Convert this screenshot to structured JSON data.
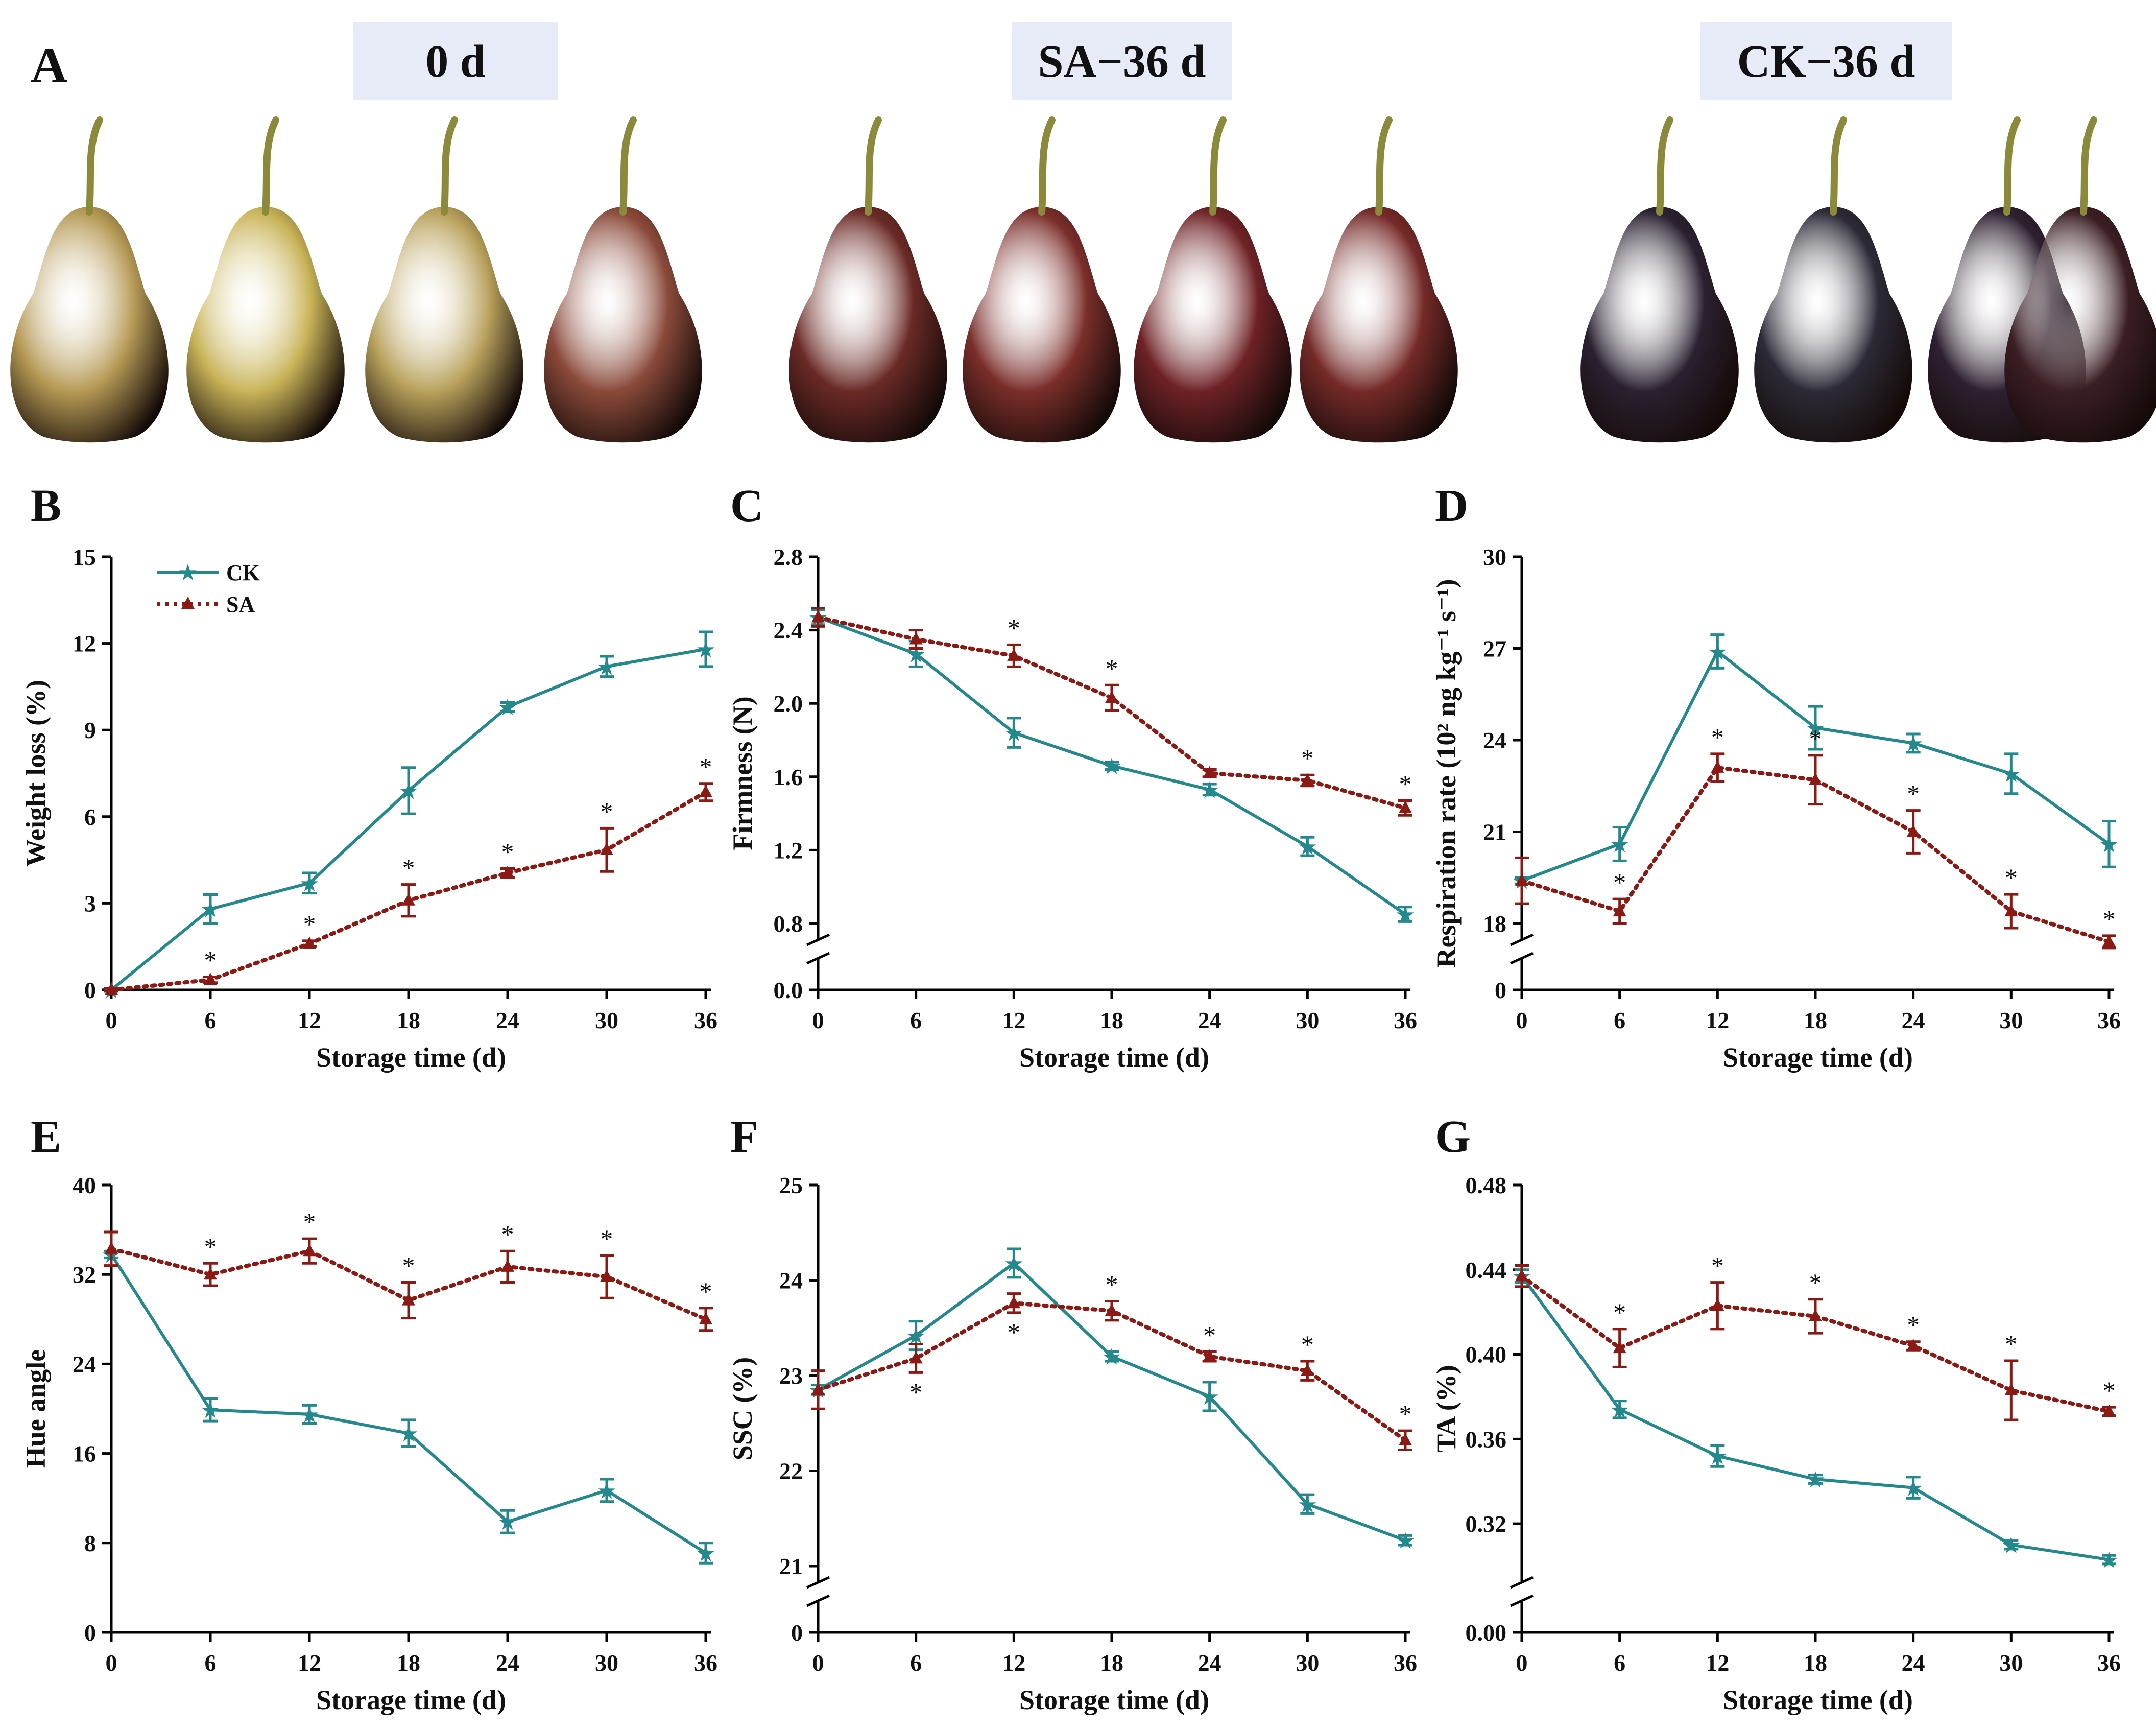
{
  "panel_a": {
    "letter": "A",
    "groups": [
      {
        "label": "0 d",
        "fruit_colors": [
          "#b69a55",
          "#c9b458",
          "#b9a25c",
          "#8a4a3a"
        ]
      },
      {
        "label": "SA−36 d",
        "fruit_colors": [
          "#6a2a26",
          "#7a2e2a",
          "#6e2226",
          "#742a28"
        ]
      },
      {
        "label": "CK−36 d",
        "fruit_colors": [
          "#2a2030",
          "#2c2a36",
          "#2e2030",
          "#3a1e24"
        ]
      }
    ],
    "stem_color": "#8a8a3a"
  },
  "colors": {
    "ck": "#24898c",
    "sa": "#8b1a14"
  },
  "chart_data": [
    {
      "type": "line",
      "panel": "B",
      "xlabel": "Storage time (d)",
      "ylabel": "Weight loss (%)",
      "ylim": [
        0,
        15
      ],
      "yticks": [
        "0",
        "3",
        "6",
        "9",
        "12",
        "15"
      ],
      "axis_break": false,
      "x": [
        0,
        6,
        12,
        18,
        24,
        30,
        36
      ],
      "legend": {
        "ck": "CK",
        "sa": "SA"
      },
      "series": [
        {
          "name": "CK",
          "values": [
            0,
            2.8,
            3.7,
            6.9,
            9.8,
            11.2,
            11.8
          ],
          "errors": [
            0.05,
            0.5,
            0.35,
            0.8,
            0.15,
            0.35,
            0.6
          ]
        },
        {
          "name": "SA",
          "values": [
            0,
            0.35,
            1.6,
            3.1,
            4.05,
            4.85,
            6.85
          ],
          "errors": [
            0.05,
            0.1,
            0.1,
            0.55,
            0.15,
            0.75,
            0.3
          ],
          "stars": [
            1,
            2,
            3,
            4,
            5,
            6
          ]
        }
      ]
    },
    {
      "type": "line",
      "panel": "C",
      "xlabel": "Storage time (d)",
      "ylabel": "Firmness (N)",
      "ylim": [
        0.8,
        2.8
      ],
      "yticks": [
        "0.8",
        "1.2",
        "1.6",
        "2.0",
        "2.4",
        "2.8"
      ],
      "axis_break": true,
      "break_label": "0.0",
      "x": [
        0,
        6,
        12,
        18,
        24,
        30,
        36
      ],
      "series": [
        {
          "name": "CK",
          "values": [
            2.47,
            2.27,
            1.84,
            1.66,
            1.53,
            1.22,
            0.85
          ],
          "errors": [
            0.04,
            0.07,
            0.08,
            0.02,
            0.03,
            0.05,
            0.04
          ]
        },
        {
          "name": "SA",
          "values": [
            2.47,
            2.35,
            2.26,
            2.03,
            1.62,
            1.58,
            1.43
          ],
          "errors": [
            0.05,
            0.05,
            0.06,
            0.07,
            0.02,
            0.03,
            0.04
          ],
          "stars": [
            2,
            3,
            5,
            6
          ]
        }
      ]
    },
    {
      "type": "line",
      "panel": "D",
      "xlabel": "Storage time (d)",
      "ylabel": "Respiration rate (10² ng kg⁻¹ s⁻¹)",
      "ylim": [
        18,
        30
      ],
      "yticks": [
        "18",
        "21",
        "24",
        "27",
        "30"
      ],
      "axis_break": true,
      "break_label": "0",
      "x": [
        0,
        6,
        12,
        18,
        24,
        30,
        36
      ],
      "series": [
        {
          "name": "CK",
          "values": [
            19.4,
            20.6,
            26.9,
            24.4,
            23.9,
            22.9,
            20.6
          ],
          "errors": [
            0.1,
            0.55,
            0.55,
            0.7,
            0.3,
            0.65,
            0.75
          ]
        },
        {
          "name": "SA",
          "values": [
            19.4,
            18.4,
            23.1,
            22.7,
            21.0,
            18.4,
            17.4
          ],
          "errors": [
            0.75,
            0.4,
            0.45,
            0.8,
            0.7,
            0.55,
            0.2
          ],
          "stars": [
            1,
            2,
            3,
            4,
            5,
            6
          ]
        }
      ]
    },
    {
      "type": "line",
      "panel": "E",
      "xlabel": "Storage time (d)",
      "ylabel": "Hue angle",
      "ylim": [
        0,
        40
      ],
      "yticks": [
        "0",
        "8",
        "16",
        "24",
        "32",
        "40"
      ],
      "axis_break": false,
      "x": [
        0,
        6,
        12,
        18,
        24,
        30,
        36
      ],
      "series": [
        {
          "name": "CK",
          "values": [
            33.8,
            19.9,
            19.5,
            17.8,
            9.9,
            12.7,
            7.1
          ],
          "errors": [
            0.3,
            1.0,
            0.8,
            1.2,
            1.0,
            1.0,
            0.9
          ]
        },
        {
          "name": "SA",
          "values": [
            34.3,
            32.0,
            34.1,
            29.7,
            32.7,
            31.8,
            28.0
          ],
          "errors": [
            1.5,
            1.0,
            1.1,
            1.6,
            1.4,
            1.9,
            1.0
          ],
          "stars": [
            1,
            2,
            3,
            4,
            5,
            6
          ]
        }
      ]
    },
    {
      "type": "line",
      "panel": "F",
      "xlabel": "Storage time (d)",
      "ylabel": "SSC (%)",
      "ylim": [
        21,
        25
      ],
      "yticks": [
        "21",
        "22",
        "23",
        "24",
        "25"
      ],
      "axis_break": true,
      "break_label": "0",
      "x": [
        0,
        6,
        12,
        18,
        24,
        30,
        36
      ],
      "series": [
        {
          "name": "CK",
          "values": [
            22.85,
            23.42,
            24.18,
            23.2,
            22.78,
            21.65,
            21.27
          ],
          "errors": [
            0.05,
            0.15,
            0.15,
            0.05,
            0.15,
            0.1,
            0.05
          ]
        },
        {
          "name": "SA",
          "values": [
            22.85,
            23.18,
            23.76,
            23.68,
            23.2,
            23.05,
            22.32
          ],
          "errors": [
            0.2,
            0.15,
            0.1,
            0.1,
            0.05,
            0.1,
            0.1
          ],
          "stars": [
            1,
            2,
            3,
            4,
            5,
            6
          ],
          "stars_below": [
            1,
            2
          ]
        }
      ]
    },
    {
      "type": "line",
      "panel": "G",
      "xlabel": "Storage time (d)",
      "ylabel": "TA (%)",
      "ylim": [
        0.3,
        0.48
      ],
      "yticks": [
        "0.32",
        "0.36",
        "0.40",
        "0.44",
        "0.48"
      ],
      "axis_break": true,
      "break_label": "0.00",
      "x": [
        0,
        6,
        12,
        18,
        24,
        30,
        36
      ],
      "series": [
        {
          "name": "CK",
          "values": [
            0.437,
            0.374,
            0.352,
            0.341,
            0.337,
            0.31,
            0.303
          ],
          "errors": [
            0.003,
            0.004,
            0.005,
            0.002,
            0.005,
            0.002,
            0.002
          ]
        },
        {
          "name": "SA",
          "values": [
            0.437,
            0.403,
            0.423,
            0.418,
            0.404,
            0.383,
            0.373
          ],
          "errors": [
            0.005,
            0.009,
            0.011,
            0.008,
            0.002,
            0.014,
            0.002
          ],
          "stars": [
            1,
            2,
            3,
            4,
            5,
            6
          ]
        }
      ]
    }
  ]
}
